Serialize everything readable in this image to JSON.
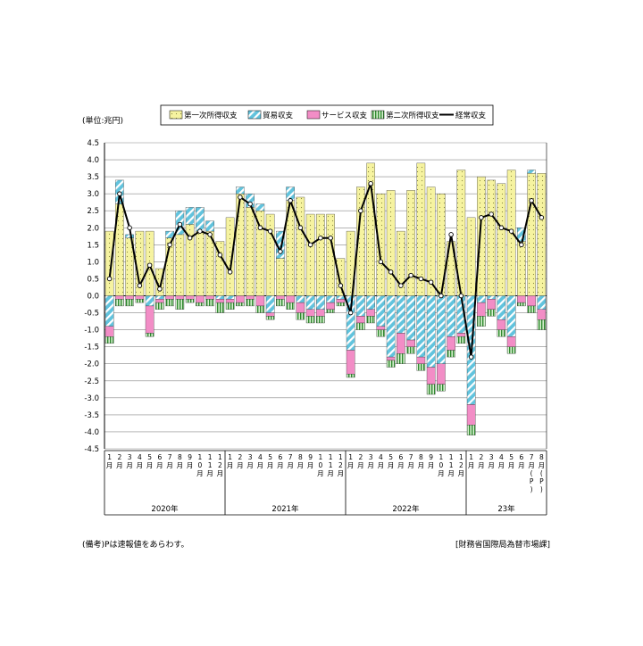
{
  "unit_label": "(単位:兆円)",
  "note_left": "(備考)Pは速報値をあらわす。",
  "note_right": "[財務省国際局為替市場課]",
  "colors": {
    "primary": "#f6f3a0",
    "primary_dot": "#8a8a40",
    "trade": "#61c3dd",
    "service": "#f28dc6",
    "secondary": "#2f8a2f",
    "secondary_bg": "#d8f0d0",
    "line": "#000000"
  },
  "chart_data": {
    "type": "bar",
    "ylabel": "(単位:兆円)",
    "ylim": [
      -4.5,
      4.5
    ],
    "yticks": [
      "4.5",
      "4.0",
      "3.5",
      "3.0",
      "2.5",
      "2.0",
      "1.5",
      "1.0",
      "0.5",
      "0.0",
      "-0.5",
      "-1.0",
      "-1.5",
      "-2.0",
      "-2.5",
      "-3.0",
      "-3.5",
      "-4.0",
      "-4.5"
    ],
    "grid": true,
    "legend_position": "top",
    "month_labels": [
      "1",
      "2",
      "3",
      "4",
      "5",
      "6",
      "7",
      "8",
      "9",
      "10",
      "11",
      "12",
      "1",
      "2",
      "3",
      "4",
      "5",
      "6",
      "7",
      "8",
      "9",
      "10",
      "11",
      "12",
      "1",
      "2",
      "3",
      "4",
      "5",
      "6",
      "7",
      "8",
      "9",
      "10",
      "11",
      "12",
      "1",
      "2",
      "3",
      "4",
      "5",
      "6",
      "7P",
      "8P"
    ],
    "month_suffix": "月",
    "year_groups": [
      {
        "label": "2020年",
        "count": 12
      },
      {
        "label": "2021年",
        "count": 12
      },
      {
        "label": "2022年",
        "count": 12
      },
      {
        "label": "23年",
        "count": 8
      }
    ],
    "series": [
      {
        "name": "第一次所得収支",
        "values": [
          1.9,
          2.7,
          1.7,
          1.9,
          1.9,
          0.8,
          1.7,
          1.8,
          2.1,
          1.9,
          1.9,
          1.6,
          2.3,
          3.0,
          2.6,
          2.5,
          2.4,
          1.1,
          2.8,
          2.9,
          2.4,
          2.4,
          2.4,
          1.1,
          1.9,
          3.2,
          3.9,
          3.0,
          3.1,
          1.9,
          3.1,
          3.9,
          3.2,
          3.0,
          1.6,
          3.7,
          2.3,
          3.5,
          3.4,
          3.3,
          3.7,
          1.6,
          3.6,
          3.6
        ]
      },
      {
        "name": "貿易収支",
        "values": [
          -0.9,
          0.7,
          0.1,
          0.0,
          -0.3,
          -0.1,
          0.2,
          0.7,
          0.5,
          0.7,
          0.3,
          -0.1,
          -0.1,
          0.2,
          0.4,
          0.2,
          -0.5,
          0.8,
          0.4,
          -0.2,
          -0.4,
          -0.4,
          -0.2,
          -0.1,
          -1.6,
          -0.6,
          -0.4,
          -0.9,
          -1.8,
          -1.1,
          -1.3,
          -1.8,
          -2.1,
          -2.0,
          -1.2,
          -1.1,
          -3.2,
          -0.2,
          -0.1,
          -0.7,
          -1.2,
          0.4,
          0.1,
          -0.4
        ]
      },
      {
        "name": "サービス収支",
        "values": [
          -0.3,
          -0.1,
          -0.1,
          -0.1,
          -0.8,
          -0.1,
          -0.1,
          -0.1,
          -0.1,
          -0.2,
          -0.1,
          -0.1,
          -0.1,
          -0.2,
          -0.1,
          -0.3,
          -0.1,
          -0.1,
          -0.2,
          -0.3,
          -0.2,
          -0.2,
          -0.2,
          -0.1,
          -0.7,
          -0.2,
          -0.2,
          -0.1,
          -0.1,
          -0.6,
          -0.2,
          -0.2,
          -0.5,
          -0.6,
          -0.4,
          -0.1,
          -0.6,
          -0.4,
          -0.3,
          -0.3,
          -0.3,
          -0.2,
          -0.3,
          -0.3
        ]
      },
      {
        "name": "第二次所得収支",
        "values": [
          -0.2,
          -0.2,
          -0.2,
          -0.1,
          -0.1,
          -0.2,
          -0.2,
          -0.3,
          -0.1,
          -0.1,
          -0.2,
          -0.3,
          -0.2,
          -0.1,
          -0.2,
          -0.2,
          -0.1,
          -0.2,
          -0.2,
          -0.2,
          -0.2,
          -0.2,
          -0.1,
          -0.1,
          -0.1,
          -0.2,
          -0.2,
          -0.2,
          -0.2,
          -0.3,
          -0.2,
          -0.2,
          -0.3,
          -0.2,
          -0.2,
          -0.2,
          -0.3,
          -0.3,
          -0.2,
          -0.2,
          -0.2,
          -0.1,
          -0.2,
          -0.3
        ]
      },
      {
        "name": "経常収支",
        "values": [
          0.5,
          3.0,
          2.0,
          0.3,
          0.9,
          0.2,
          1.5,
          2.1,
          1.7,
          1.9,
          1.8,
          1.2,
          0.7,
          2.9,
          2.7,
          2.0,
          1.9,
          1.3,
          2.8,
          2.0,
          1.5,
          1.7,
          1.7,
          0.3,
          -0.5,
          2.5,
          3.3,
          1.0,
          0.7,
          0.3,
          0.6,
          0.5,
          0.4,
          0.0,
          1.8,
          0.0,
          -1.8,
          2.3,
          2.4,
          2.0,
          1.9,
          1.5,
          2.8,
          2.3
        ]
      }
    ]
  }
}
